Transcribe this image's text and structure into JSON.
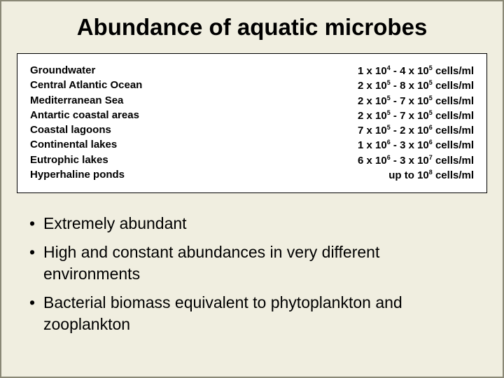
{
  "title": "Abundance of aquatic microbes",
  "background_color": "#f0eee0",
  "border_color": "#8a8876",
  "box": {
    "background": "#ffffff",
    "border": "#000000",
    "label_font": "Comic Sans MS",
    "label_fontsize": 15,
    "rows": [
      {
        "label": "Groundwater",
        "lo_m": "1",
        "lo_e": "4",
        "hi_m": "4",
        "hi_e": "5",
        "unit": "cells/ml"
      },
      {
        "label": "Central Atlantic Ocean",
        "lo_m": "2",
        "lo_e": "5",
        "hi_m": "8",
        "hi_e": "5",
        "unit": "cells/ml"
      },
      {
        "label": "Mediterranean Sea",
        "lo_m": "2",
        "lo_e": "5",
        "hi_m": "7",
        "hi_e": "5",
        "unit": "cells/ml"
      },
      {
        "label": "Antartic coastal areas",
        "lo_m": "2",
        "lo_e": "5",
        "hi_m": "7",
        "hi_e": "5",
        "unit": "cells/ml"
      },
      {
        "label": "Coastal lagoons",
        "lo_m": "7",
        "lo_e": "5",
        "hi_m": "2",
        "hi_e": "6",
        "unit": "cells/ml"
      },
      {
        "label": "Continental lakes",
        "lo_m": "1",
        "lo_e": "6",
        "hi_m": "3",
        "hi_e": "6",
        "unit": "cells/ml"
      },
      {
        "label": "Eutrophic lakes",
        "lo_m": "6",
        "lo_e": "6",
        "hi_m": "3",
        "hi_e": "7",
        "unit": "cells/ml"
      },
      {
        "label": "Hyperhaline ponds",
        "upto": true,
        "hi_m": "",
        "hi_e": "8",
        "unit": "cells/ml"
      }
    ]
  },
  "bullets": [
    "Extremely abundant",
    "High and constant abundances in very different environments",
    "Bacterial biomass equivalent to phytoplankton and zooplankton"
  ],
  "bullet_fontsize": 23
}
